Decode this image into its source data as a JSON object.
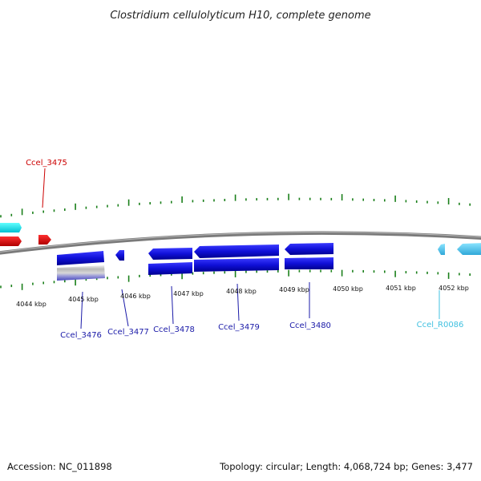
{
  "title": "Clostridium cellulolyticum H10, complete genome",
  "footer": {
    "accession": "Accession: NC_011898",
    "summary": "Topology: circular; Length: 4,068,724 bp; Genes: 3,477"
  },
  "scale_labels": [
    "4044 kbp",
    "4045 kbp",
    "4046 kbp",
    "4047 kbp",
    "4048 kbp",
    "4049 kbp",
    "4050 kbp",
    "4051 kbp",
    "4052 kbp"
  ],
  "gene_labels": [
    "Ccel_3475",
    "Ccel_3476",
    "Ccel_3477",
    "Ccel_3478",
    "Ccel_3479",
    "Ccel_3480",
    "Ccel_R0086"
  ],
  "colors": {
    "backbone": "#7a7a7a",
    "tick": "#1a7f1a",
    "cds": "#1010d8",
    "rna": "#58c8f0",
    "cyan_feature": "#00e0e8",
    "red_feature": "#e00000",
    "label_red": "#cc0000",
    "label_blue": "#1a1aa8",
    "label_cyan": "#40c0e0"
  }
}
